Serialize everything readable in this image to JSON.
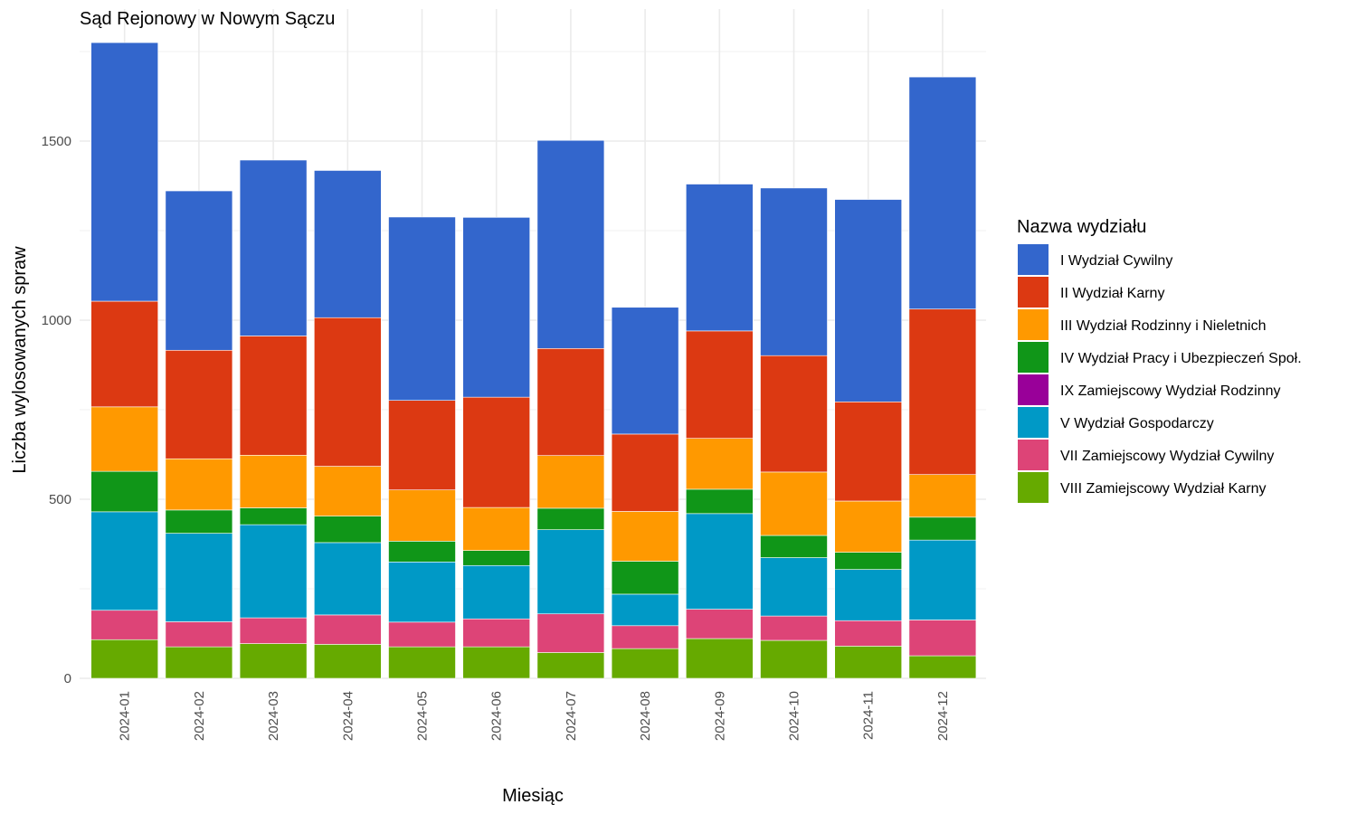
{
  "chart_data": {
    "type": "bar",
    "stacked": true,
    "title": "Sąd Rejonowy w Nowym Sączu",
    "xlabel": "Miesiąc",
    "ylabel": "Liczba wylosowanych spraw",
    "ylim": [
      0,
      1780
    ],
    "yticks": [
      0,
      500,
      1000,
      1500
    ],
    "grid": true,
    "legend_title": "Nazwa wydziału",
    "legend_position": "right",
    "categories": [
      "2024-01",
      "2024-02",
      "2024-03",
      "2024-04",
      "2024-05",
      "2024-06",
      "2024-07",
      "2024-08",
      "2024-09",
      "2024-10",
      "2024-11",
      "2024-12"
    ],
    "series": [
      {
        "name": "VIII Zamiejscowy Wydział Karny",
        "color": "#66aa00",
        "values": [
          108,
          88,
          97,
          95,
          88,
          88,
          72,
          83,
          111,
          106,
          90,
          63
        ]
      },
      {
        "name": "VII Zamiejscowy Wydział Cywilny",
        "color": "#dd4477",
        "values": [
          82,
          70,
          72,
          82,
          69,
          78,
          108,
          64,
          82,
          68,
          71,
          100
        ]
      },
      {
        "name": "V Wydział Gospodarczy",
        "color": "#0099c6",
        "values": [
          275,
          247,
          260,
          202,
          168,
          149,
          235,
          88,
          267,
          163,
          143,
          223
        ]
      },
      {
        "name": "IX Zamiejscowy Wydział Rodzinny",
        "color": "#990099",
        "values": [
          0,
          0,
          0,
          0,
          0,
          0,
          0,
          0,
          0,
          0,
          0,
          0
        ]
      },
      {
        "name": "IV Wydział Pracy i Ubezpieczeń Społ.",
        "color": "#109618",
        "values": [
          113,
          65,
          47,
          74,
          58,
          42,
          60,
          92,
          68,
          62,
          48,
          64
        ]
      },
      {
        "name": "III Wydział Rodzinny i Nieletnich",
        "color": "#ff9900",
        "values": [
          180,
          143,
          147,
          139,
          143,
          120,
          147,
          139,
          142,
          177,
          143,
          119
        ]
      },
      {
        "name": "II Wydział Karny",
        "color": "#dc3912",
        "values": [
          295,
          303,
          333,
          415,
          250,
          308,
          299,
          216,
          300,
          325,
          277,
          462
        ]
      },
      {
        "name": "I Wydział Cywilny",
        "color": "#3366cc",
        "values": [
          722,
          445,
          491,
          411,
          512,
          502,
          581,
          354,
          410,
          468,
          565,
          648
        ]
      }
    ]
  }
}
